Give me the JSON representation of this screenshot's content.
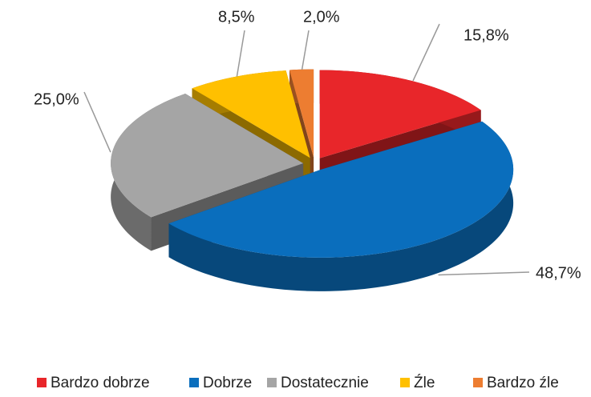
{
  "chart_data": {
    "type": "pie3d",
    "categories": [
      "Bardzo dobrze",
      "Dobrze",
      "Dostatecznie",
      "Źle",
      "Bardzo źle"
    ],
    "values": [
      15.8,
      48.7,
      25.0,
      8.5,
      2.0
    ],
    "value_labels": [
      "15,8%",
      "48,7%",
      "25,0%",
      "8,5%",
      "2,0%"
    ],
    "colors": [
      "#e8262a",
      "#0a6ebd",
      "#a5a5a5",
      "#ffc000",
      "#ed7d31"
    ],
    "legend": "bottom"
  }
}
